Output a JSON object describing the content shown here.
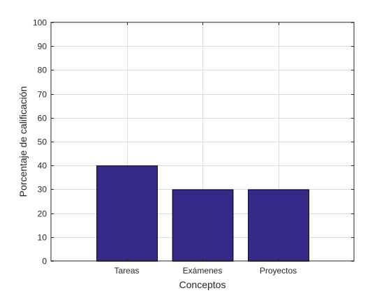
{
  "chart_data": {
    "type": "bar",
    "title": "",
    "xlabel": "Conceptos",
    "ylabel": "Porcentaje de calificación",
    "categories": [
      "Tareas",
      "Exámenes",
      "Proyectos"
    ],
    "values": [
      40,
      30,
      30
    ],
    "ylim": [
      0,
      100
    ],
    "yticks": [
      0,
      10,
      20,
      30,
      40,
      50,
      60,
      70,
      80,
      90,
      100
    ],
    "grid": true,
    "box": true,
    "bar_color": "#352a87",
    "bar_edge_color": "#000000"
  }
}
